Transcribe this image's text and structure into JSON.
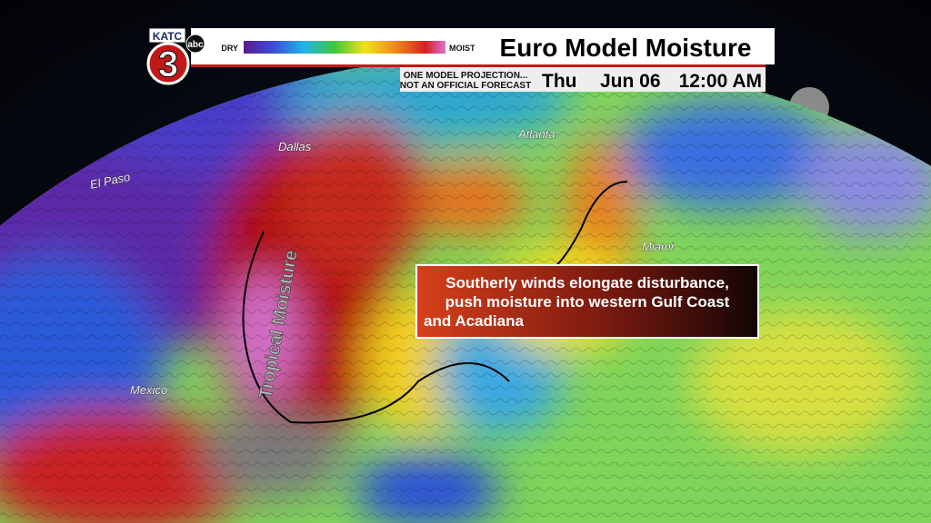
{
  "header": {
    "station": "KATC",
    "network": "abc",
    "channel": "3",
    "scale_low": "DRY",
    "scale_high": "MOIST",
    "title": "Euro Model Moisture",
    "disclaimer": [
      "ONE MODEL PROJECTION...",
      "NOT AN OFFICIAL FORECAST"
    ],
    "day": "Thu",
    "date": "Jun 06",
    "time": "12:00 AM"
  },
  "map": {
    "labels": [
      "Dallas",
      "Atlanta",
      "El Paso",
      "Miami",
      "Mexico"
    ],
    "annotation": "Tropical Moisture"
  },
  "callout": {
    "lines": [
      "Southerly winds elongate disturbance,",
      "push moisture into western Gulf Coast",
      "and Acadiana"
    ]
  }
}
